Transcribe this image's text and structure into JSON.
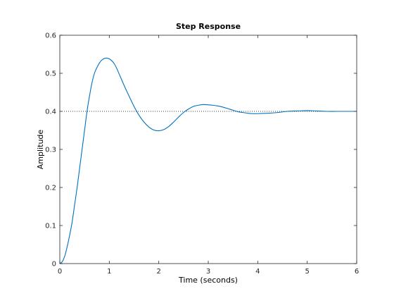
{
  "chart_data": {
    "type": "line",
    "title": "Step Response",
    "xlabel": "Time (seconds)",
    "ylabel": "Amplitude",
    "xlim": [
      0,
      6
    ],
    "ylim": [
      0,
      0.6
    ],
    "xticks": [
      0,
      1,
      2,
      3,
      4,
      5,
      6
    ],
    "yticks": [
      0,
      0.1,
      0.2,
      0.3,
      0.4,
      0.5,
      0.6
    ],
    "xtick_labels": [
      "0",
      "1",
      "2",
      "3",
      "4",
      "5",
      "6"
    ],
    "ytick_labels": [
      "0",
      "0.1",
      "0.2",
      "0.3",
      "0.4",
      "0.5",
      "0.6"
    ],
    "grid": false,
    "reference_line": {
      "y": 0.4,
      "style": "dotted",
      "color": "#000000"
    },
    "series": [
      {
        "color": "#0072bd",
        "x": [
          0,
          0.05,
          0.1,
          0.15,
          0.2,
          0.25,
          0.3,
          0.35,
          0.4,
          0.45,
          0.5,
          0.55,
          0.6,
          0.65,
          0.7,
          0.75,
          0.8,
          0.85,
          0.9,
          0.95,
          1.0,
          1.05,
          1.1,
          1.15,
          1.2,
          1.3,
          1.4,
          1.5,
          1.6,
          1.7,
          1.8,
          1.9,
          2.0,
          2.1,
          2.2,
          2.3,
          2.4,
          2.5,
          2.6,
          2.7,
          2.8,
          2.9,
          3.0,
          3.1,
          3.2,
          3.3,
          3.4,
          3.5,
          3.6,
          3.7,
          3.8,
          3.9,
          4.0,
          4.2,
          4.4,
          4.6,
          4.8,
          5.0,
          5.2,
          5.4,
          5.6,
          5.8,
          6.0
        ],
        "y": [
          0,
          0.005,
          0.02,
          0.045,
          0.075,
          0.11,
          0.155,
          0.2,
          0.25,
          0.3,
          0.35,
          0.4,
          0.44,
          0.475,
          0.5,
          0.515,
          0.527,
          0.535,
          0.539,
          0.54,
          0.538,
          0.533,
          0.525,
          0.513,
          0.498,
          0.468,
          0.44,
          0.413,
          0.39,
          0.372,
          0.359,
          0.351,
          0.349,
          0.352,
          0.36,
          0.372,
          0.385,
          0.397,
          0.406,
          0.413,
          0.416,
          0.418,
          0.417,
          0.416,
          0.414,
          0.411,
          0.407,
          0.403,
          0.399,
          0.397,
          0.395,
          0.394,
          0.394,
          0.395,
          0.397,
          0.4,
          0.401,
          0.402,
          0.401,
          0.4,
          0.4,
          0.4,
          0.4
        ]
      }
    ]
  }
}
